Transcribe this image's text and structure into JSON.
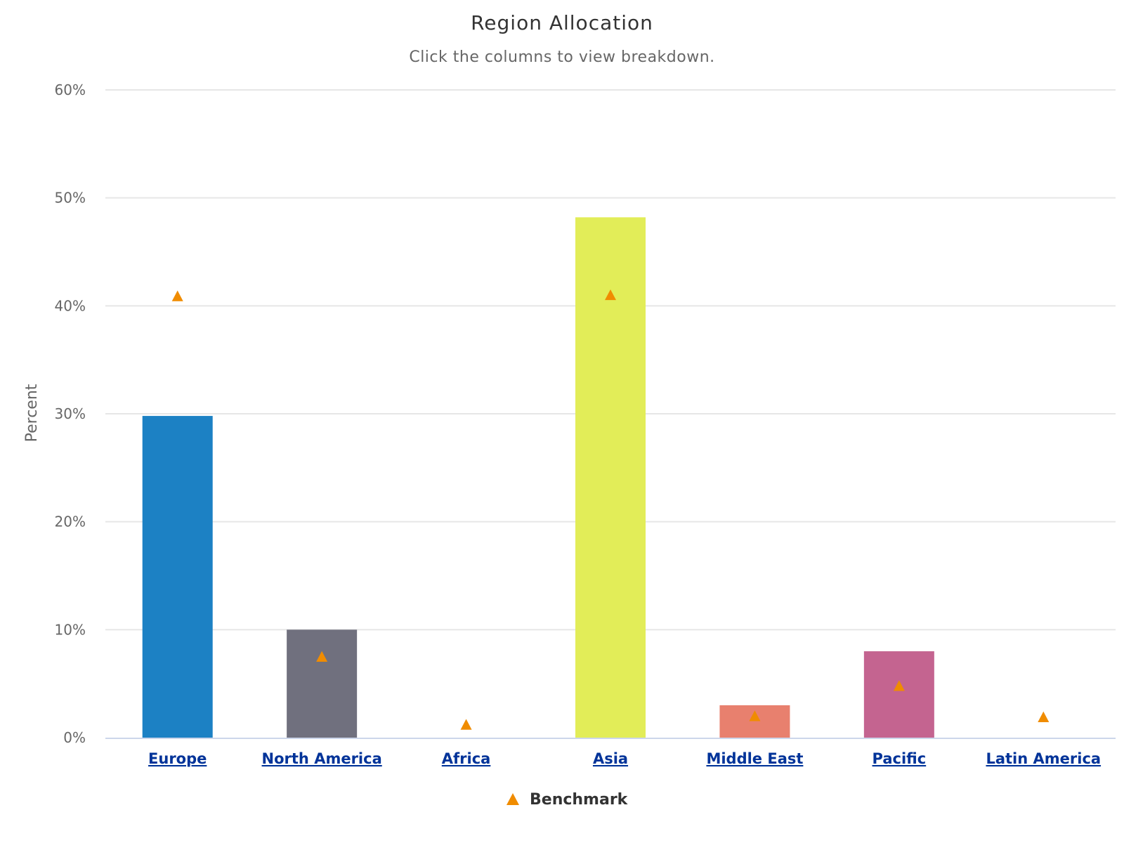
{
  "chart_data": {
    "type": "bar",
    "title": "Region Allocation",
    "subtitle": "Click the columns to view breakdown.",
    "ylabel": "Percent",
    "xlabel": "",
    "categories": [
      "Europe",
      "North America",
      "Africa",
      "Asia",
      "Middle East",
      "Pacific",
      "Latin America"
    ],
    "ylim": [
      0,
      60
    ],
    "y_ticks": [
      "0%",
      "10%",
      "20%",
      "30%",
      "40%",
      "50%",
      "60%"
    ],
    "y_tick_values": [
      0,
      10,
      20,
      30,
      40,
      50,
      60
    ],
    "series": [
      {
        "type": "bar",
        "values": [
          29.8,
          10.0,
          0,
          48.2,
          3.0,
          8.0,
          0
        ],
        "colors": [
          "#1c81c4",
          "#70707e",
          "#e06b5a",
          "#e2ed58",
          "#e8806e",
          "#c46490",
          "#86c166"
        ]
      },
      {
        "name": "Benchmark",
        "type": "scatter",
        "marker": "triangle",
        "color": "#f08c00",
        "values": [
          40.9,
          7.5,
          1.2,
          41.0,
          2.0,
          4.8,
          1.9
        ]
      }
    ],
    "grid": true,
    "legend": "bottom-center"
  }
}
